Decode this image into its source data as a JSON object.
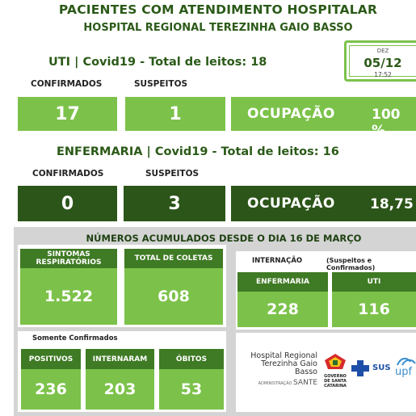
{
  "header": {
    "title": "PACIENTES COM ATENDIMENTO HOSPITALAR",
    "subtitle": "HOSPITAL REGIONAL TEREZINHA GAIO BASSO"
  },
  "date": {
    "month": "DEZ",
    "day": "05/12",
    "time": "17:52"
  },
  "uti": {
    "title": "UTI | Covid19 - Total de leitos: 18",
    "confirmed_label": "CONFIRMADOS",
    "suspected_label": "SUSPEITOS",
    "confirmed": "17",
    "suspected": "1",
    "occupancy_label": "OCUPAÇÃO",
    "occupancy": "100 %"
  },
  "enfermaria": {
    "title": "ENFERMARIA | Covid19 - Total de leitos: 16",
    "confirmed_label": "CONFIRMADOS",
    "suspected_label": "SUSPEITOS",
    "confirmed": "0",
    "suspected": "3",
    "occupancy_label": "OCUPAÇÃO",
    "occupancy": "18,75"
  },
  "accumulated": {
    "title": "NÚMEROS ACUMULADOS DESDE O DIA 16 DE MARÇO",
    "symptoms_label": "SINTOMAS RESPIRATÓRIOS",
    "symptoms": "1.522",
    "collections_label": "TOTAL DE COLETAS",
    "collections": "608",
    "internacao_label": "INTERNAÇÃO",
    "internacao_note": "(Suspeitos e Confirmados)",
    "enfermaria_label": "ENFERMARIA",
    "enfermaria": "228",
    "uti_label": "UTI",
    "uti": "116",
    "confirmed_only_label": "Somente Confirmados",
    "positives_label": "POSITIVOS",
    "positives": "236",
    "hospitalized_label": "INTERNARAM",
    "hospitalized": "203",
    "deaths_label": "ÓBITOS",
    "deaths": "53"
  },
  "logos": {
    "hospital_line1": "Hospital Regional",
    "hospital_line2": "Terezinha Gaio Basso",
    "admin_label": "ADMINISTRAÇÃO",
    "admin_name": "SANTE",
    "gov_line1": "GOVERNO",
    "gov_line2": "DE SANTA",
    "gov_line3": "CATARINA",
    "sus": "SUS",
    "upf": "upf"
  }
}
